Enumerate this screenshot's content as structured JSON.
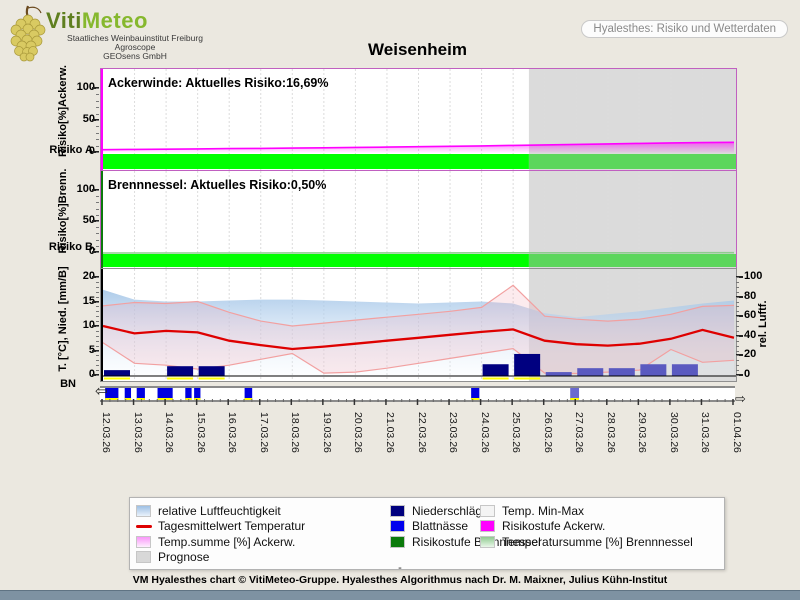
{
  "header": {
    "logo": {
      "title_part1": "Viti",
      "title_part2": "Meteo",
      "subtitle1": "Staatliches Weinbauinstitut Freiburg",
      "subtitle2": "Agroscope",
      "subtitle3": "GEOsens GmbH"
    },
    "info_pill": "Hyalesthes: Risiko und Wetterdaten",
    "title": "Weisenheim"
  },
  "dates": [
    "12.03.26",
    "13.03.26",
    "14.03.26",
    "15.03.26",
    "16.03.26",
    "17.03.26",
    "18.03.26",
    "19.03.26",
    "20.03.26",
    "21.03.26",
    "22.03.26",
    "23.03.26",
    "24.03.26",
    "25.03.26",
    "26.03.26",
    "27.03.26",
    "28.03.26",
    "29.03.26",
    "30.03.26",
    "31.03.26",
    "01.04.26"
  ],
  "chart_data": [
    {
      "type": "area",
      "title": "Ackerwinde: Aktuelles Risiko:16,69%",
      "ylabel": "Risiko[%]Ackerw.",
      "ylabel_corner": "Risiko A.",
      "ylim": [
        0,
        100
      ],
      "yticks": [
        0,
        50,
        100
      ],
      "prognose_start": "25.03.26",
      "series": [
        {
          "name": "Risikostufe / Temp.summe [%] Ackerw.",
          "color": "#FF00FF",
          "values": [
            5.2,
            5.6,
            6.0,
            6.4,
            6.8,
            7.2,
            7.7,
            8.2,
            8.7,
            9.2,
            9.8,
            10.4,
            11.1,
            11.8,
            12.6,
            13.4,
            14.2,
            15.0,
            15.8,
            16.3,
            16.69
          ]
        }
      ],
      "risk_bar": {
        "name": "Risikostufe Ackerw.",
        "displayed_color": "#00FF00",
        "level": "niedrig"
      }
    },
    {
      "type": "area",
      "title": "Brennnessel: Aktuelles Risiko:0,50%",
      "ylabel": "Risiko[%]Brenn.",
      "ylabel_corner": "Risiko B.",
      "ylim": [
        0,
        100
      ],
      "yticks": [
        0,
        50,
        100
      ],
      "prognose_start": "25.03.26",
      "series": [
        {
          "name": "Temperatursumme [%] Brennnessel",
          "color": "#8FCB8F",
          "values": [
            0,
            0,
            0,
            0,
            0.05,
            0.05,
            0.1,
            0.1,
            0.15,
            0.15,
            0.2,
            0.2,
            0.25,
            0.3,
            0.3,
            0.35,
            0.35,
            0.4,
            0.4,
            0.45,
            0.5
          ]
        }
      ],
      "risk_bar": {
        "name": "Risikostufe Brennnessel",
        "displayed_color": "#00FF00",
        "level": "niedrig"
      }
    },
    {
      "type": "line",
      "title": "",
      "ylabel_left": "T. [°C], Nied. [mm/B]",
      "ylabel_corner": "BN",
      "ylabel_right": "rel. Luftf.",
      "ylim_left": [
        0,
        20
      ],
      "ylim_right": [
        0,
        100
      ],
      "yticks_left": [
        0,
        5,
        10,
        15,
        20
      ],
      "yticks_right": [
        0,
        20,
        40,
        60,
        80,
        100
      ],
      "prognose_start": "25.03.26",
      "series": [
        {
          "name": "relative Luftfeuchtigkeit",
          "unit": "%",
          "axis": "right",
          "color": "#9DBFE4",
          "values": [
            88,
            78,
            76,
            76,
            77,
            78,
            78,
            77,
            76,
            75,
            74,
            75,
            76,
            74,
            64,
            60,
            63,
            66,
            70,
            74,
            77
          ]
        },
        {
          "name": "Tagesmittelwert Temperatur",
          "unit": "°C",
          "axis": "left",
          "color": "#DD0000",
          "values": [
            10.2,
            8.7,
            9.2,
            8.9,
            7.2,
            6.3,
            5.5,
            6.0,
            6.6,
            7.2,
            7.8,
            8.4,
            9.0,
            9.5,
            7.2,
            6.5,
            6.2,
            6.6,
            7.6,
            9.4,
            7.8
          ]
        },
        {
          "name": "Temp. Max",
          "unit": "°C",
          "axis": "left",
          "color": "#F2A0A0",
          "values": [
            14.3,
            15.0,
            14.8,
            15.2,
            13.0,
            11.2,
            10.2,
            10.8,
            11.4,
            12.0,
            12.6,
            13.2,
            14.0,
            18.5,
            12.2,
            11.6,
            11.2,
            11.6,
            12.6,
            14.2,
            14.4
          ]
        },
        {
          "name": "Temp. Min",
          "unit": "°C",
          "axis": "left",
          "color": "#F2A0A0",
          "values": [
            6.8,
            2.6,
            2.2,
            1.4,
            2.2,
            3.4,
            4.6,
            0.6,
            0.8,
            1.6,
            2.6,
            3.6,
            4.6,
            5.6,
            0.6,
            0.5,
            0.8,
            1.2,
            5.4,
            2.8,
            3.2
          ]
        },
        {
          "name": "Niederschläge",
          "unit": "mm",
          "axis": "left",
          "color": "#000080",
          "values": [
            1.2,
            0,
            2.0,
            2.0,
            0,
            0,
            0,
            0,
            0,
            0,
            0,
            0,
            2.4,
            4.5,
            0.8,
            1.6,
            1.6,
            2.4,
            2.4,
            0,
            0
          ]
        }
      ],
      "leaf_wetness_segments": [
        [
          0.005,
          0.026
        ],
        [
          0.036,
          0.046
        ],
        [
          0.055,
          0.068
        ],
        [
          0.088,
          0.112
        ],
        [
          0.132,
          0.142
        ],
        [
          0.146,
          0.156
        ],
        [
          0.226,
          0.238
        ],
        [
          0.585,
          0.598
        ],
        [
          0.742,
          0.756
        ]
      ]
    }
  ],
  "legend": {
    "columns": [
      [
        {
          "label": "relative Luftfeuchtigkeit",
          "swatch": "gradient",
          "color": "#9DBFE4",
          "color2": "#EAF2FB"
        },
        {
          "label": "Tagesmittelwert Temperatur",
          "swatch": "line",
          "color": "#DD0000"
        },
        {
          "label": "Temp.summe [%] Ackerw.",
          "swatch": "gradient",
          "color": "#F996F9",
          "color2": "#FEEFFE"
        },
        {
          "label": "Prognose",
          "swatch": "solid",
          "color": "#D8D8D8"
        }
      ],
      [
        {
          "label": "Niederschläge",
          "swatch": "solid",
          "color": "#00007E"
        },
        {
          "label": "Blattnässe",
          "swatch": "solid",
          "color": "#0000EE"
        },
        {
          "label": "Risikostufe Brennnessel",
          "swatch": "solid",
          "color": "#0B7A0B"
        }
      ],
      [
        {
          "label": "Temp. Min-Max",
          "swatch": "solid",
          "color": "#F4F4F4"
        },
        {
          "label": "Risikostufe Ackerw.",
          "swatch": "solid",
          "color": "#FF00FF"
        },
        {
          "label": "Temperatursumme [%] Brennnessel",
          "swatch": "gradient",
          "color": "#8FCB8F",
          "color2": "#EAF7EA"
        }
      ]
    ]
  },
  "footer": {
    "dash": "-",
    "text": "VM Hyalesthes chart © VitiMeteo-Gruppe. Hyalesthes Algorithmus nach Dr. M. Maixner, Julius Kühn-Institut"
  },
  "colors": {
    "page_bg": "#EBE8E0",
    "risk_green": "#00FF00",
    "risk_green_prognose": "#5CD65C",
    "prognose_gray": "#DBDBDB",
    "accent_magenta": "#FF00FF",
    "logo_green_dark": "#5F7F1F",
    "logo_green_light": "#86B82E",
    "bottom_bar": "#7E92A2"
  }
}
